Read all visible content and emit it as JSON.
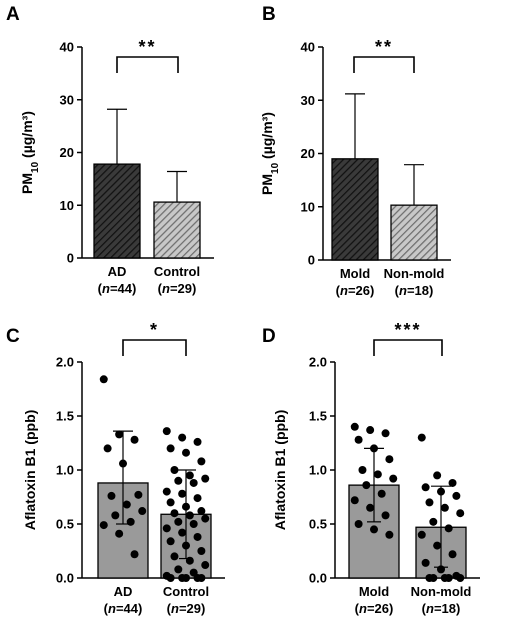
{
  "chart_data": [
    {
      "panel": "A",
      "type": "bar",
      "ylabel": "PM10 (µg/m³)",
      "ylabel_main": "PM",
      "ylabel_sub": "10",
      "ylabel_unit": " (µg/m³)",
      "ylim": [
        0,
        40
      ],
      "yticks": [
        "0",
        "10",
        "20",
        "30",
        "40"
      ],
      "categories": [
        "AD",
        "Control"
      ],
      "category_n": [
        "(n=44)",
        "(n=29)"
      ],
      "values": [
        17.8,
        10.6
      ],
      "error_upper": [
        28.2,
        16.4
      ],
      "fills": [
        "#3a3a3a",
        "#9a9a9a"
      ],
      "significance": "**"
    },
    {
      "panel": "B",
      "type": "bar",
      "ylabel": "PM10 (µg/m³)",
      "ylabel_main": "PM",
      "ylabel_sub": "10",
      "ylabel_unit": " (µg/m³)",
      "ylim": [
        0,
        40
      ],
      "yticks": [
        "0",
        "10",
        "20",
        "30",
        "40"
      ],
      "categories": [
        "Mold",
        "Non-mold"
      ],
      "category_n": [
        "(n=26)",
        "(n=18)"
      ],
      "values": [
        19.0,
        10.3
      ],
      "error_upper": [
        31.2,
        17.9
      ],
      "fills": [
        "#3a3a3a",
        "#9a9a9a"
      ],
      "significance": "**"
    },
    {
      "panel": "C",
      "type": "bar",
      "ylabel": "Aflatoxin B1 (ppb)",
      "ylim": [
        0,
        2.0
      ],
      "yticks": [
        "0.0",
        "0.5",
        "1.0",
        "1.5",
        "2.0"
      ],
      "categories": [
        "AD",
        "Control"
      ],
      "category_n": [
        "(n=44)",
        "(n=29)"
      ],
      "values": [
        0.88,
        0.59
      ],
      "error_lower": [
        0.5,
        0.18
      ],
      "error_upper": [
        1.36,
        1.0
      ],
      "fills": [
        "#9a9a9a",
        "#9a9a9a"
      ],
      "significance": "*",
      "points": [
        [
          1.84,
          1.33,
          1.28,
          1.2,
          1.06,
          0.77,
          0.76,
          0.68,
          0.62,
          0.58,
          0.52,
          0.49,
          0.41,
          0.22
        ],
        [
          1.36,
          1.3,
          1.26,
          1.2,
          1.16,
          1.08,
          1.0,
          0.95,
          0.92,
          0.9,
          0.88,
          0.8,
          0.78,
          0.74,
          0.7,
          0.66,
          0.62,
          0.6,
          0.58,
          0.55,
          0.52,
          0.5,
          0.46,
          0.42,
          0.38,
          0.34,
          0.3,
          0.25,
          0.2,
          0.16,
          0.12,
          0.08,
          0.05,
          0.02,
          0.0,
          0.0,
          0.0,
          0.0,
          0.0
        ]
      ]
    },
    {
      "panel": "D",
      "type": "bar",
      "ylabel": "Aflatoxin B1 (ppb)",
      "ylim": [
        0,
        2.0
      ],
      "yticks": [
        "0.0",
        "0.5",
        "1.0",
        "1.5",
        "2.0"
      ],
      "categories": [
        "Mold",
        "Non-mold"
      ],
      "category_n": [
        "(n=26)",
        "(n=18)"
      ],
      "values": [
        0.86,
        0.47
      ],
      "error_lower": [
        0.52,
        0.1
      ],
      "error_upper": [
        1.2,
        0.85
      ],
      "fills": [
        "#9a9a9a",
        "#9a9a9a"
      ],
      "significance": "***",
      "points": [
        [
          1.4,
          1.37,
          1.34,
          1.28,
          1.2,
          1.1,
          1.0,
          0.96,
          0.92,
          0.86,
          0.78,
          0.72,
          0.65,
          0.58,
          0.5,
          0.45,
          0.4
        ],
        [
          1.3,
          0.95,
          0.88,
          0.84,
          0.8,
          0.76,
          0.7,
          0.65,
          0.6,
          0.52,
          0.46,
          0.4,
          0.3,
          0.22,
          0.14,
          0.08,
          0.02,
          0.0,
          0.0,
          0.0,
          0.0,
          0.0
        ]
      ]
    }
  ]
}
